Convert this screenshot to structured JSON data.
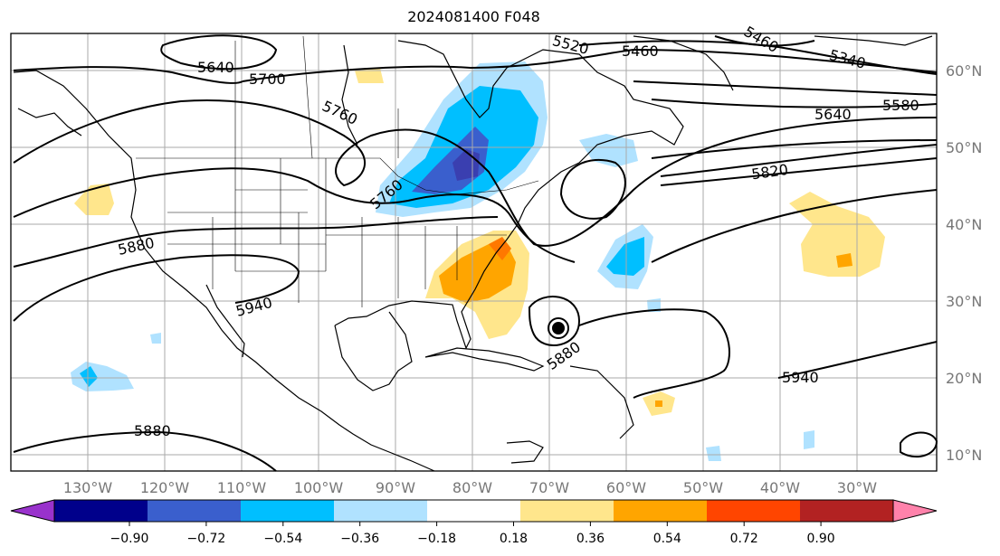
{
  "title": "2024081400 F048",
  "map": {
    "projection": "PlateCarree",
    "lon_range": [
      -137,
      -16
    ],
    "lat_range": [
      8,
      65
    ],
    "gridlines": true,
    "lon_ticks": [
      "130°W",
      "120°W",
      "110°W",
      "100°W",
      "90°W",
      "80°W",
      "70°W",
      "60°W",
      "50°W",
      "40°W",
      "30°W"
    ],
    "lat_ticks": [
      "60°N",
      "50°N",
      "40°N",
      "30°N",
      "20°N",
      "10°N"
    ],
    "contour_labels": [
      "5640",
      "5700",
      "5760",
      "5760",
      "5880",
      "5940",
      "5880",
      "5880",
      "5940",
      "5820",
      "5640",
      "5580",
      "5340",
      "5460",
      "5460",
      "5520"
    ],
    "hurricane_marker": "closed-low-contour-icon"
  },
  "colorbar": {
    "colors": [
      "#9932cc",
      "#00008b",
      "#3a5fcd",
      "#00bfff",
      "#b0e2ff",
      "#ffffff",
      "#ffe68c",
      "#ffa500",
      "#ff4500",
      "#b22222",
      "#ff82ab"
    ],
    "tick_labels": [
      "−0.90",
      "−0.72",
      "−0.54",
      "−0.36",
      "−0.18",
      "0.18",
      "0.36",
      "0.54",
      "0.72",
      "0.90"
    ],
    "extend": "both"
  }
}
